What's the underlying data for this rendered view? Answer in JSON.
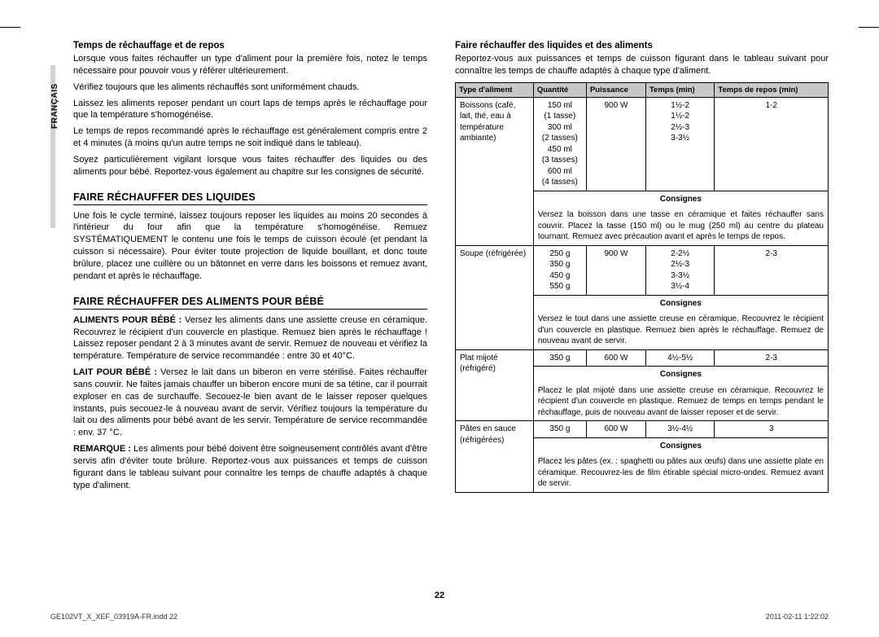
{
  "lang_tab": "FRANÇAIS",
  "left": {
    "h1": "Temps de réchauffage et de repos",
    "p1": "Lorsque vous faites réchauffer un type d'aliment pour la première fois, notez le temps nécessaire pour pouvoir vous y référer ultérieurement.",
    "p2": "Vérifiez toujours que les aliments réchauffés sont uniformément chauds.",
    "p3": "Laissez les aliments reposer pendant un court laps de temps après le réchauffage pour que la température s'homogénéise.",
    "p4": "Le temps de repos recommandé après le réchauffage est généralement compris entre 2 et 4 minutes (à moins qu'un autre temps ne soit indiqué dans le tableau).",
    "p5": "Soyez particulièrement vigilant lorsque vous faites réchauffer des liquides ou des aliments pour bébé. Reportez-vous également au chapitre sur les consignes de sécurité.",
    "h2": "FAIRE RÉCHAUFFER DES LIQUIDES",
    "p6": "Une fois le cycle terminé, laissez toujours reposer les liquides au moins 20 secondes à l'intérieur du four afin que la température s'homogénéise. Remuez SYSTÉMATIQUEMENT le contenu une fois le temps de cuisson écoulé (et pendant la cuisson si nécessaire). Pour éviter toute projection de liquide bouillant, et donc toute brûlure, placez une cuillère ou un bâtonnet en verre dans les boissons et remuez avant, pendant et après le réchauffage.",
    "h3": "FAIRE RÉCHAUFFER DES ALIMENTS POUR BÉBÉ",
    "p7a": "ALIMENTS POUR BÉBÉ :",
    "p7b": " Versez les aliments dans une assiette creuse en céramique. Recouvrez le récipient d'un couvercle en plastique. Remuez bien après le réchauffage ! Laissez reposer pendant 2 à 3 minutes avant de servir. Remuez de nouveau et vérifiez la température. Température de service recommandée : entre 30 et 40°C.",
    "p8a": "LAIT POUR BÉBÉ :",
    "p8b": " Versez le lait dans un biberon en verre stérilisé. Faites réchauffer sans couvrir. Ne faites jamais chauffer un biberon encore muni de sa tétine, car il pourrait exploser en cas de surchauffe. Secouez-le bien avant de le laisser reposer quelques instants, puis secouez-le à nouveau avant de servir. Vérifiez toujours la température du lait ou des aliments pour bébé avant de les servir. Température de service recommandée : env. 37 °C.",
    "p9a": "REMARQUE :",
    "p9b": " Les aliments pour bébé doivent être soigneusement contrôlés avant d'être servis afin d'éviter toute brûlure. Reportez-vous aux puissances et temps de cuisson figurant dans le tableau suivant pour connaître les temps de chauffe adaptés à chaque type d'aliment."
  },
  "right": {
    "h1": "Faire réchauffer des liquides et des aliments",
    "p1": "Reportez-vous aux puissances et temps de cuisson figurant dans le tableau suivant pour connaître les temps de chauffe adaptés à chaque type d'aliment.",
    "consignes_label": "Consignes",
    "headers": [
      "Type d'aliment",
      "Quantité",
      "Puissance",
      "Temps (min)",
      "Temps de repos (min)"
    ],
    "rows": [
      {
        "food": "Boissons (café, lait, thé, eau à température ambiante)",
        "qty": "150 ml\n(1 tasse)\n300 ml\n(2 tasses)\n450 ml\n(3 tasses)\n600 ml\n(4 tasses)",
        "power": "900 W",
        "time": "1½-2\n1½-2\n2½-3\n3-3½",
        "rest": "1-2",
        "consignes": "Versez la boisson dans une tasse en céramique et faites réchauffer sans couvrir. Placez la tasse (150 ml) ou le mug (250 ml) au centre du plateau tournant. Remuez avec précaution avant et après le temps de repos."
      },
      {
        "food": "Soupe (réfrigérée)",
        "qty": "250 g\n350 g\n450 g\n550 g",
        "power": "900 W",
        "time": "2-2½\n2½-3\n3-3½\n3½-4",
        "rest": "2-3",
        "consignes": "Versez le tout dans une assiette creuse en céramique. Recouvrez le récipient d'un couvercle en plastique. Remuez bien après le réchauffage. Remuez de nouveau avant de servir."
      },
      {
        "food": "Plat mijoté (réfrigéré)",
        "qty": "350 g",
        "power": "600 W",
        "time": "4½-5½",
        "rest": "2-3",
        "consignes": "Placez le plat mijoté dans une assiette creuse en céramique. Recouvrez le récipient d'un couvercle en plastique. Remuez de temps en temps pendant le réchauffage, puis de nouveau avant de laisser reposer et de servir."
      },
      {
        "food": "Pâtes en sauce (réfrigérées)",
        "qty": "350 g",
        "power": "600 W",
        "time": "3½-4½",
        "rest": "3",
        "consignes": "Placez les pâtes (ex. : spaghetti ou pâtes aux œufs) dans une assiette plate en céramique. Recouvrez-les de film étirable spécial micro-ondes. Remuez avant de servir."
      }
    ]
  },
  "page_number": "22",
  "footer_left": "GE102VT_X_XEF_03919A-FR.indd   22",
  "footer_right": "2011-02-11   1:22:02"
}
